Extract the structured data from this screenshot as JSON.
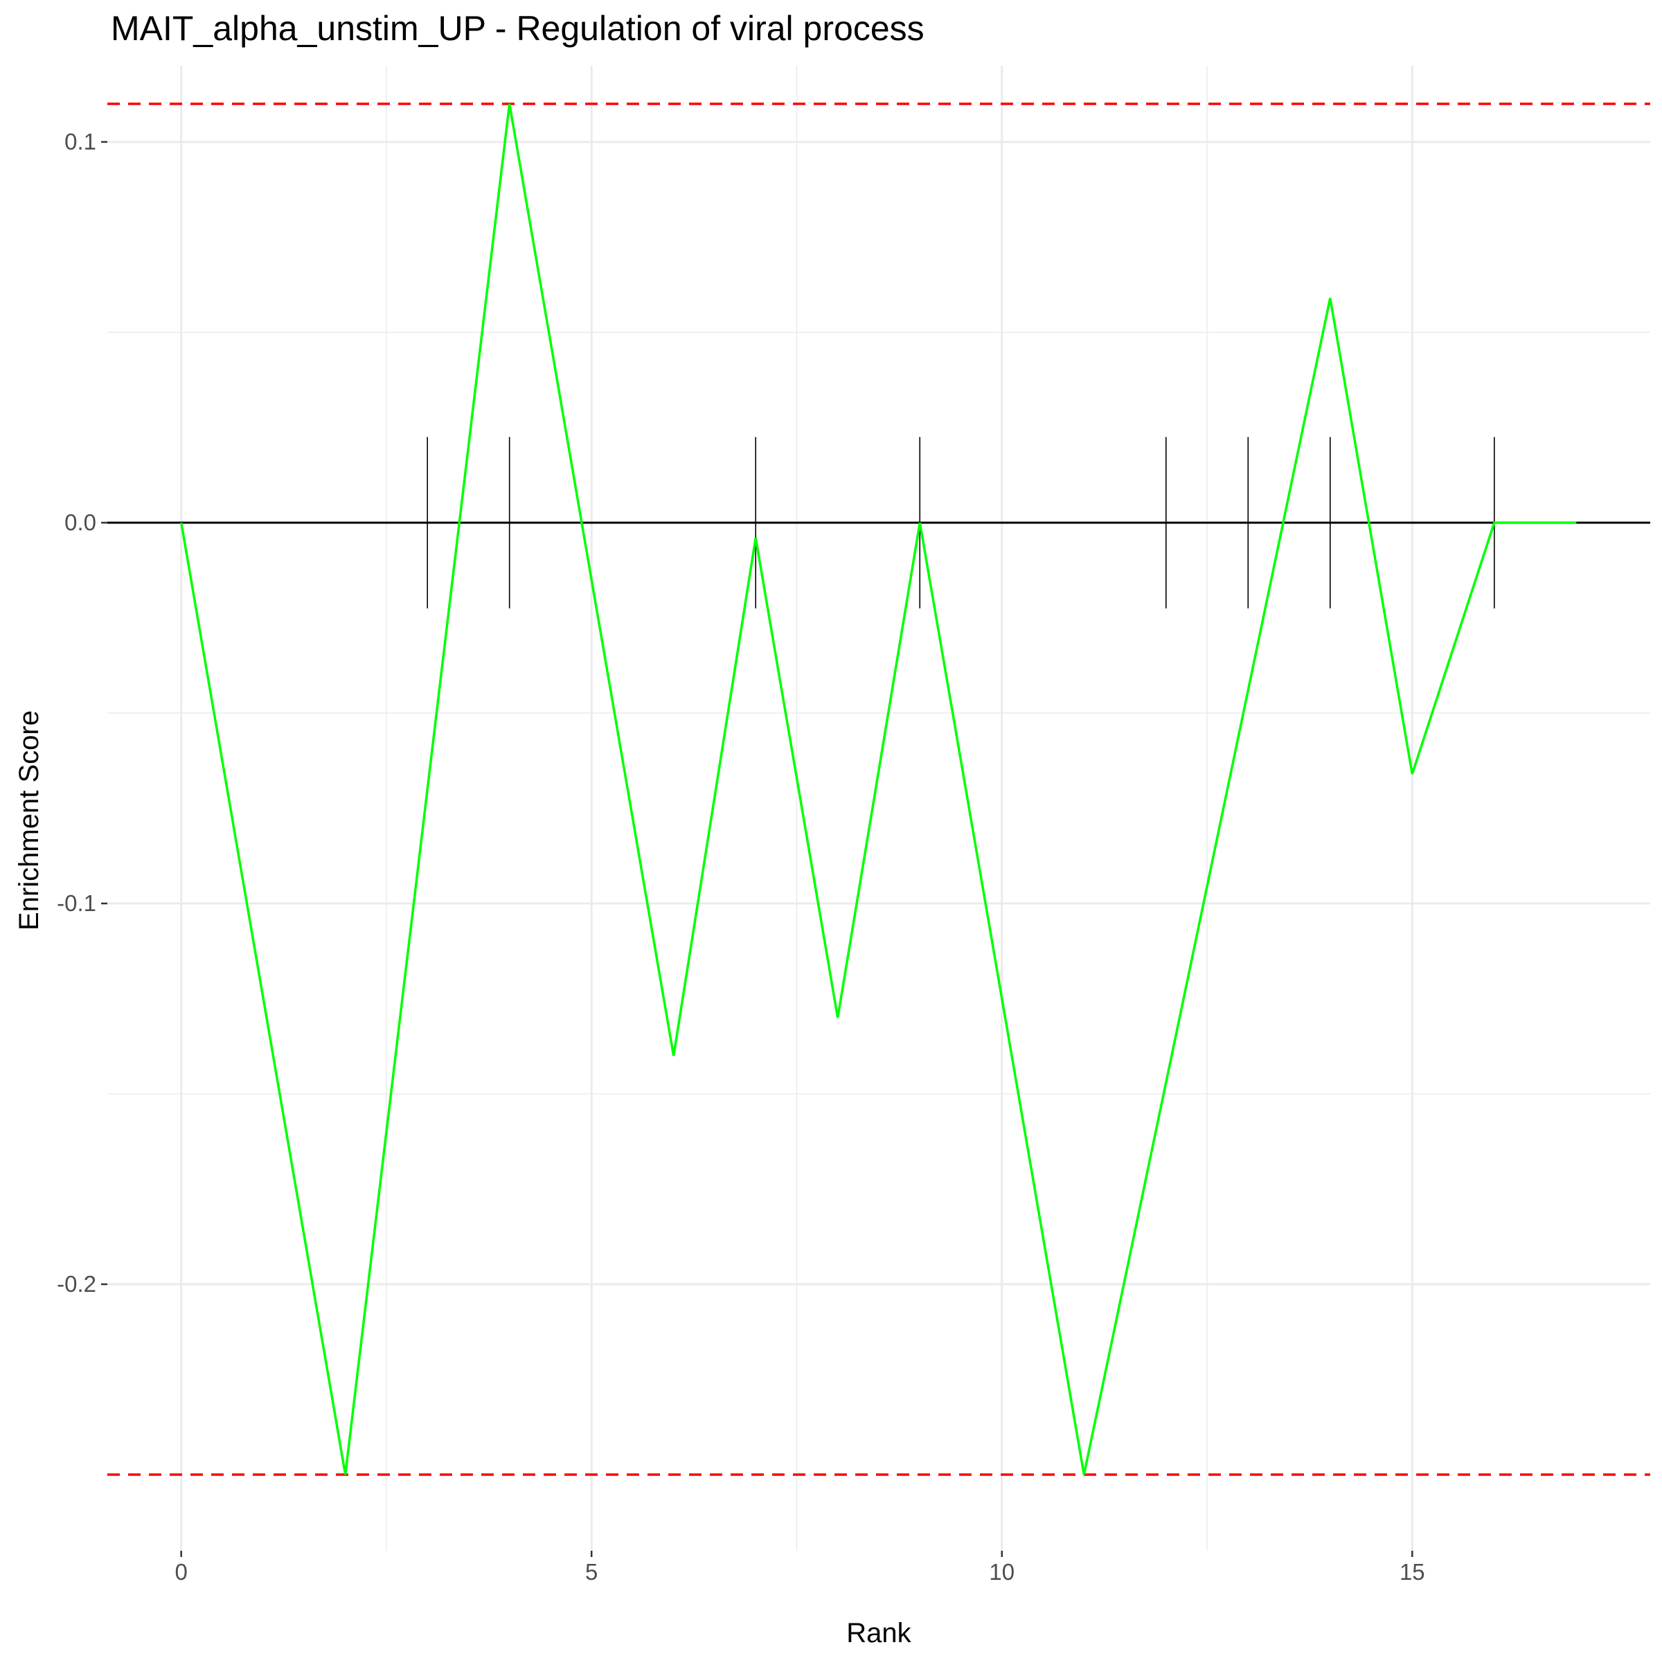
{
  "chart_data": {
    "type": "line",
    "title": "MAIT_alpha_unstim_UP - Regulation of viral process",
    "xlabel": "Rank",
    "ylabel": "Enrichment Score",
    "xlim": [
      -0.9,
      17.9
    ],
    "ylim": [
      -0.27,
      0.12
    ],
    "x_ticks": [
      0,
      5,
      10,
      15
    ],
    "x_tick_labels": [
      "0",
      "5",
      "10",
      "15"
    ],
    "y_ticks": [
      0.1,
      0.0,
      -0.1,
      -0.2
    ],
    "y_tick_labels": [
      "0.1",
      "0.0",
      "-0.1",
      "-0.2"
    ],
    "grid": true,
    "series": [
      {
        "color": "#00ff00",
        "x": [
          0,
          2,
          4,
          6,
          7,
          8,
          9,
          11,
          14,
          15,
          16,
          17
        ],
        "y": [
          0.0,
          -0.25,
          0.11,
          -0.14,
          -0.004,
          -0.13,
          0.0,
          -0.25,
          0.059,
          -0.066,
          0.0,
          0.0
        ]
      }
    ],
    "hits": {
      "color": "#000000",
      "x": [
        3,
        4,
        7,
        9,
        12,
        13,
        14,
        16
      ],
      "y_range": [
        -0.0225,
        0.0225
      ]
    },
    "reference_lines": [
      {
        "orientation": "horizontal",
        "y": 0.0,
        "color": "#000000",
        "style": "solid"
      },
      {
        "orientation": "horizontal",
        "y": 0.11,
        "color": "#ff0000",
        "style": "dashed"
      },
      {
        "orientation": "horizontal",
        "y": -0.25,
        "color": "#ff0000",
        "style": "dashed"
      }
    ],
    "colors": {
      "grid": "#ebebeb",
      "tick_mark": "#333333",
      "tick_label": "#4d4d4d"
    }
  }
}
